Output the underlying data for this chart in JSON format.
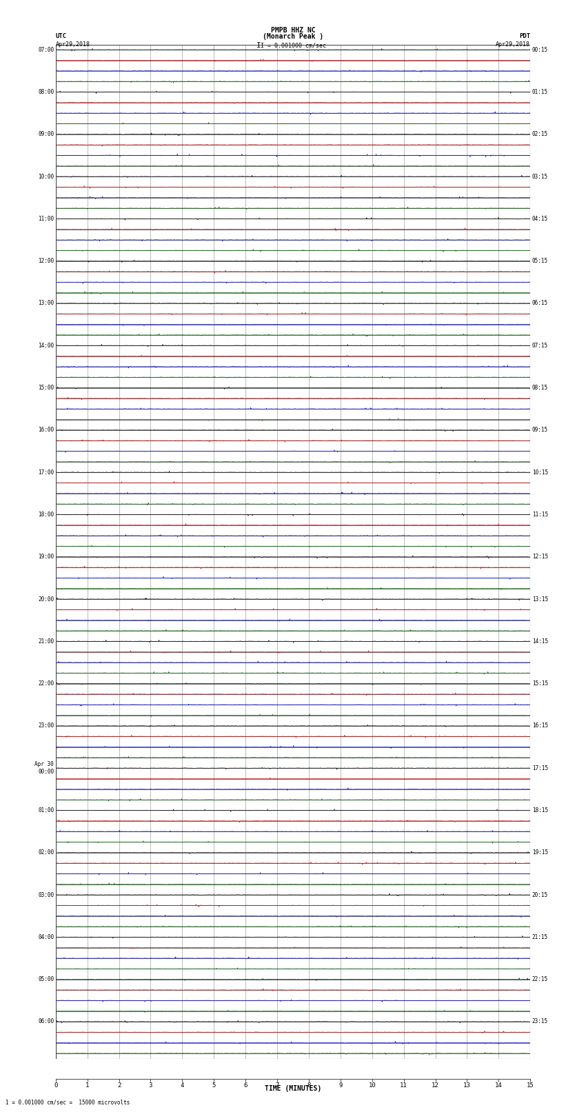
{
  "title_line1": "PMPB HHZ NC",
  "title_line2": "(Monarch Peak )",
  "scale_text": "I = 0.001000 cm/sec",
  "bottom_text": "1 = 0.001000 cm/sec =  15000 microvolts",
  "utc_label": "UTC",
  "pdt_label": "PDT",
  "date_left": "Apr29,2018",
  "date_right": "Apr29,2018",
  "xlabel": "TIME (MINUTES)",
  "bg_color": "#ffffff",
  "trace_colors": [
    "#000000",
    "#cc0000",
    "#0000cc",
    "#006600"
  ],
  "hour_labels_left": [
    "07:00",
    "08:00",
    "09:00",
    "10:00",
    "11:00",
    "12:00",
    "13:00",
    "14:00",
    "15:00",
    "16:00",
    "17:00",
    "18:00",
    "19:00",
    "20:00",
    "21:00",
    "22:00",
    "23:00",
    "Apr 30\n00:00",
    "01:00",
    "02:00",
    "03:00",
    "04:00",
    "05:00",
    "06:00"
  ],
  "hour_labels_right": [
    "00:15",
    "01:15",
    "02:15",
    "03:15",
    "04:15",
    "05:15",
    "06:15",
    "07:15",
    "08:15",
    "09:15",
    "10:15",
    "11:15",
    "12:15",
    "13:15",
    "14:15",
    "15:15",
    "16:15",
    "17:15",
    "18:15",
    "19:15",
    "20:15",
    "21:15",
    "22:15",
    "23:15"
  ],
  "num_hours": 24,
  "traces_per_hour": 4,
  "x_ticks": [
    0,
    1,
    2,
    3,
    4,
    5,
    6,
    7,
    8,
    9,
    10,
    11,
    12,
    13,
    14,
    15
  ],
  "x_lim": [
    0,
    15
  ],
  "noise_amplitude": 0.04,
  "spike_probability": 0.004,
  "spike_amplitude": 0.35,
  "vgrid_color": "#888888",
  "hline_color": "#000000",
  "border_color": "#444444"
}
